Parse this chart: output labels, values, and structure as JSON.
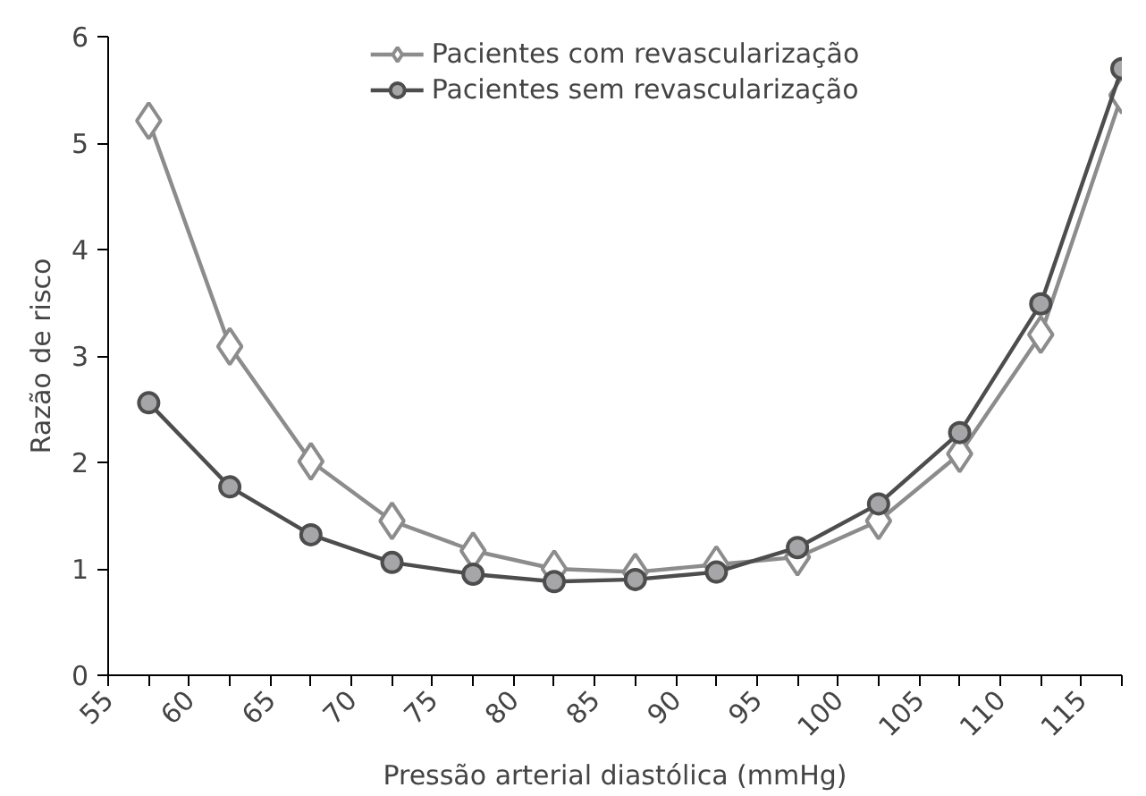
{
  "chart_data": {
    "type": "line",
    "xlabel": "Pressão arterial diastólica (mmHg)",
    "ylabel": "Razão de risco",
    "x": [
      57.5,
      62.5,
      67.5,
      72.5,
      77.5,
      82.5,
      87.5,
      92.5,
      97.5,
      102.5,
      107.5,
      112.5,
      117.5
    ],
    "xlim": [
      55,
      117.5
    ],
    "xticks": [
      55,
      {
        "value": 57.5,
        "label": null
      },
      60,
      {
        "value": 62.5,
        "label": null
      },
      65,
      {
        "value": 67.5,
        "label": null
      },
      70,
      {
        "value": 72.5,
        "label": null
      },
      75,
      {
        "value": 77.5,
        "label": null
      },
      80,
      {
        "value": 82.5,
        "label": null
      },
      85,
      {
        "value": 87.5,
        "label": null
      },
      90,
      {
        "value": 92.5,
        "label": null
      },
      95,
      {
        "value": 97.5,
        "label": null
      },
      100,
      {
        "value": 102.5,
        "label": null
      },
      105,
      {
        "value": 107.5,
        "label": null
      },
      110,
      {
        "value": 112.5,
        "label": null
      },
      115,
      {
        "value": 117.5,
        "label": null
      }
    ],
    "ylim": [
      0,
      6
    ],
    "yticks": [
      0,
      1,
      2,
      3,
      4,
      5,
      6
    ],
    "grid": false,
    "legend": "top",
    "line_style": "solid",
    "series": [
      {
        "name": "Pacientes com revascularização",
        "color": "#8c8c8c",
        "marker": "diamond",
        "values": [
          5.21,
          3.09,
          2.01,
          1.45,
          1.17,
          1.0,
          0.97,
          1.04,
          1.11,
          1.45,
          2.08,
          3.2,
          5.45
        ]
      },
      {
        "name": "Pacientes sem revascularização",
        "color": "#4d4d4d",
        "marker": "circle",
        "values": [
          2.56,
          1.77,
          1.32,
          1.06,
          0.95,
          0.88,
          0.9,
          0.97,
          1.2,
          1.61,
          2.28,
          3.49,
          5.7
        ]
      }
    ]
  }
}
